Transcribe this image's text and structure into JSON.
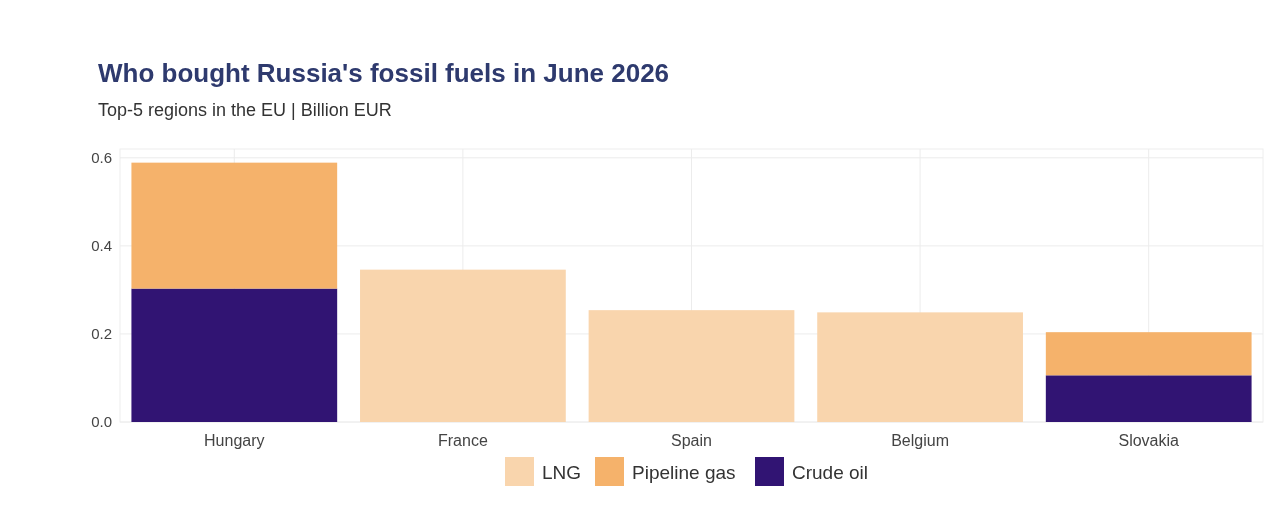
{
  "chart_data": {
    "type": "bar",
    "title": "Who bought Russia's fossil fuels in June 2026",
    "subtitle": "Top-5 regions in the EU | Billion EUR",
    "categories": [
      "Hungary",
      "France",
      "Spain",
      "Belgium",
      "Slovakia"
    ],
    "stacked": true,
    "series": [
      {
        "name": "Crude oil",
        "color": "#311473",
        "values": [
          0.303,
          0,
          0,
          0,
          0.106
        ]
      },
      {
        "name": "Pipeline gas",
        "color": "#f5b26b",
        "values": [
          0.286,
          0,
          0,
          0,
          0.098
        ]
      },
      {
        "name": "LNG",
        "color": "#f9d5ad",
        "values": [
          0,
          0.346,
          0.254,
          0.249,
          0
        ]
      }
    ],
    "ylim": [
      0,
      0.62
    ],
    "yticks": [
      {
        "value": 0,
        "label": "0.0"
      },
      {
        "value": 0.2,
        "label": "0.2"
      },
      {
        "value": 0.4,
        "label": "0.4"
      },
      {
        "value": 0.6,
        "label": "0.6"
      }
    ],
    "grid": true,
    "legend": "bottom"
  }
}
